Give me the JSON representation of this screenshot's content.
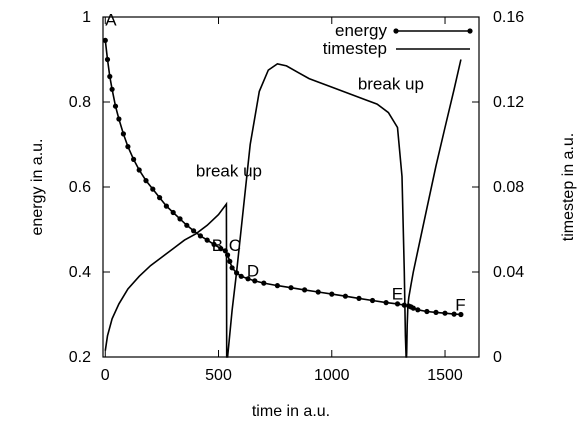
{
  "chart_data": {
    "type": "line",
    "title": "",
    "xlabel": "time in a.u.",
    "ylabel": "energy in a.u.",
    "y2label": "timestep in a.u.",
    "xlim": [
      -10,
      1650
    ],
    "ylim": [
      0.2,
      1.0
    ],
    "y2lim": [
      0,
      0.16
    ],
    "x_ticks": [
      0,
      500,
      1000,
      1500
    ],
    "y_ticks": [
      0.2,
      0.4,
      0.6,
      0.8,
      1.0
    ],
    "y_tick_labels": [
      "0.2",
      "0.4",
      "0.6",
      "0.8",
      "1"
    ],
    "y2_ticks": [
      0,
      0.04,
      0.08,
      0.12,
      0.16
    ],
    "y2_tick_labels": [
      "0",
      "0.04",
      "0.08",
      "0.12",
      "0.16"
    ],
    "legend_position": "top-right",
    "grid": false,
    "series": [
      {
        "name": "energy",
        "axis": "left",
        "style": "line-with-points",
        "x": [
          0,
          10,
          20,
          30,
          45,
          60,
          80,
          100,
          125,
          150,
          180,
          210,
          240,
          270,
          300,
          330,
          360,
          390,
          420,
          450,
          480,
          510,
          530,
          540,
          550,
          560,
          580,
          600,
          630,
          660,
          700,
          760,
          820,
          880,
          940,
          1000,
          1060,
          1120,
          1180,
          1240,
          1290,
          1320,
          1340,
          1350,
          1360,
          1380,
          1420,
          1460,
          1500,
          1540,
          1570
        ],
        "y": [
          0.945,
          0.9,
          0.86,
          0.83,
          0.79,
          0.76,
          0.725,
          0.695,
          0.665,
          0.64,
          0.615,
          0.595,
          0.575,
          0.555,
          0.54,
          0.525,
          0.51,
          0.497,
          0.485,
          0.475,
          0.465,
          0.455,
          0.45,
          0.44,
          0.425,
          0.41,
          0.398,
          0.39,
          0.384,
          0.379,
          0.374,
          0.368,
          0.363,
          0.358,
          0.353,
          0.348,
          0.343,
          0.338,
          0.333,
          0.328,
          0.325,
          0.322,
          0.32,
          0.318,
          0.315,
          0.311,
          0.307,
          0.305,
          0.303,
          0.301,
          0.3
        ]
      },
      {
        "name": "timestep",
        "axis": "right",
        "style": "line",
        "x": [
          0,
          10,
          30,
          60,
          100,
          150,
          200,
          250,
          300,
          350,
          400,
          450,
          500,
          535,
          536,
          540,
          560,
          580,
          610,
          640,
          680,
          720,
          760,
          800,
          850,
          900,
          950,
          1000,
          1050,
          1100,
          1150,
          1200,
          1250,
          1290,
          1310,
          1320,
          1325,
          1328,
          1330,
          1331,
          1333,
          1336,
          1340,
          1350,
          1360,
          1380,
          1420,
          1460,
          1500,
          1540,
          1570
        ],
        "y": [
          0.003,
          0.01,
          0.018,
          0.025,
          0.032,
          0.038,
          0.043,
          0.047,
          0.051,
          0.055,
          0.058,
          0.062,
          0.067,
          0.072,
          0.0,
          0.0,
          0.022,
          0.04,
          0.07,
          0.1,
          0.125,
          0.135,
          0.138,
          0.137,
          0.134,
          0.131,
          0.129,
          0.127,
          0.125,
          0.123,
          0.121,
          0.119,
          0.115,
          0.108,
          0.085,
          0.04,
          0.01,
          0.0,
          0.0,
          0.002,
          0.015,
          0.024,
          0.028,
          0.034,
          0.04,
          0.05,
          0.07,
          0.09,
          0.108,
          0.126,
          0.14
        ]
      }
    ],
    "annotations": [
      {
        "text": "A",
        "x": 0,
        "y": 0.98
      },
      {
        "text": "B",
        "x": 470,
        "y": 0.45
      },
      {
        "text": "C",
        "x": 545,
        "y": 0.45
      },
      {
        "text": "D",
        "x": 625,
        "y": 0.39
      },
      {
        "text": "E",
        "x": 1265,
        "y": 0.335
      },
      {
        "text": "F",
        "x": 1545,
        "y": 0.31
      },
      {
        "text": "break up",
        "x": 400,
        "y": 0.625
      },
      {
        "text": "break up",
        "x": 1115,
        "y": 0.83
      }
    ]
  }
}
